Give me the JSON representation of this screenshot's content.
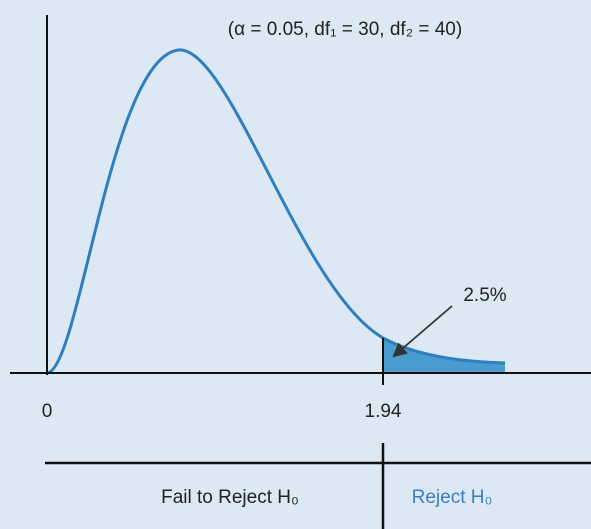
{
  "annotation": "(α = 0.05, df₁ = 30, df₂ = 40)",
  "x_labels": [
    "0",
    "1.94"
  ],
  "tail_label": "2.5%",
  "regions": [
    "Fail to Reject H₀",
    "Reject H₀"
  ]
}
